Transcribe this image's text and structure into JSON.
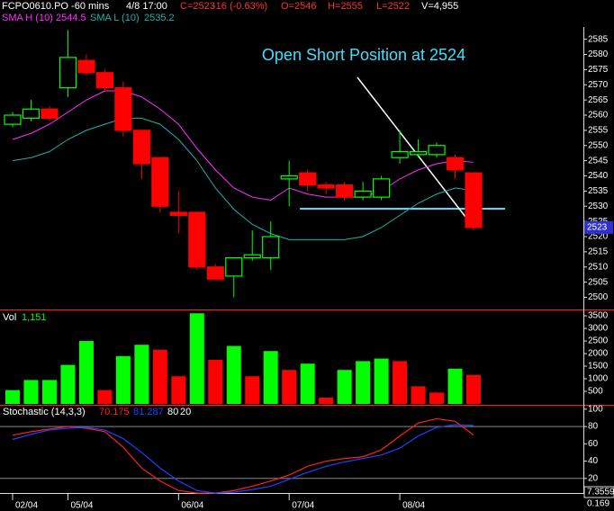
{
  "chart_data": [
    {
      "type": "candlestick",
      "title": "FCPO0610.PO -60 mins",
      "subtitle": "4/8 17:00",
      "quote": [
        "C=2523",
        "-16 (-0.63%)",
        "O=2546",
        "H=2555",
        "L=2522",
        "V=4,955"
      ],
      "open": [
        2557,
        2559,
        2562,
        2569,
        2578,
        2574,
        2569,
        2555,
        2546,
        2528,
        2528,
        2510,
        2507,
        2513,
        2513,
        2539,
        2541,
        2537,
        2537,
        2533,
        2533,
        2546,
        2547,
        2547,
        2546,
        2541
      ],
      "high": [
        2561,
        2565,
        2563,
        2588,
        2580,
        2575,
        2571,
        2555,
        2546,
        2535,
        2528,
        2511,
        2513,
        2522,
        2525,
        2545,
        2542,
        2538,
        2538,
        2538,
        2540,
        2555,
        2552,
        2551,
        2547,
        2541
      ],
      "low": [
        2556,
        2558,
        2558,
        2566,
        2573,
        2568,
        2553,
        2539,
        2528,
        2521,
        2509,
        2506,
        2500,
        2512,
        2509,
        2530,
        2535,
        2534,
        2532,
        2532,
        2532,
        2544,
        2546,
        2546,
        2539,
        2522
      ],
      "close": [
        2560,
        2562,
        2559,
        2579,
        2574,
        2569,
        2555,
        2544,
        2530,
        2527,
        2510,
        2506,
        2513,
        2514,
        2520,
        2540,
        2537,
        2536,
        2533,
        2535,
        2539,
        2548,
        2548,
        2550,
        2542,
        2523
      ],
      "up_color": "#00ff00",
      "down_color": "#ff0000",
      "series": [
        {
          "name": "SMA H (10)",
          "color": "#ff30ff",
          "values": [
            2552,
            2554,
            2557,
            2561,
            2565,
            2568,
            2568,
            2566,
            2562,
            2557,
            2549,
            2542,
            2536,
            2533,
            2532,
            2536,
            2534,
            2533,
            2533,
            2533,
            2535,
            2539,
            2542,
            2544,
            2545,
            2544.5
          ]
        },
        {
          "name": "SMA L (10)",
          "color": "#20b0b0",
          "values": [
            2545,
            2546,
            2548,
            2552,
            2555,
            2557,
            2559,
            2559,
            2557,
            2552,
            2545,
            2536,
            2529,
            2524,
            2521,
            2519,
            2519,
            2519,
            2519,
            2520,
            2523,
            2527,
            2531,
            2534,
            2536,
            2535.2
          ]
        }
      ],
      "annotation": "Open Short Position at 2524",
      "ylim": [
        2496,
        2592
      ],
      "yticks": [
        2500,
        2505,
        2510,
        2515,
        2520,
        2525,
        2530,
        2535,
        2540,
        2545,
        2550,
        2555,
        2560,
        2565,
        2570,
        2575,
        2580,
        2585
      ]
    },
    {
      "type": "bar",
      "title": "Vol",
      "values": [
        550,
        950,
        950,
        1550,
        2500,
        550,
        1900,
        2350,
        2150,
        1100,
        3600,
        1750,
        2300,
        1100,
        2100,
        1350,
        1600,
        250,
        1350,
        1700,
        1800,
        1700,
        700,
        450,
        1400,
        1151
      ],
      "value_labels": [
        null,
        null,
        null,
        null,
        null,
        null,
        null,
        null,
        null,
        null,
        null,
        null,
        null,
        null,
        null,
        null,
        null,
        null,
        null,
        null,
        null,
        null,
        null,
        null,
        null,
        "1,151"
      ],
      "colors": [
        "#00ff00",
        "#00ff00",
        "#00ff00",
        "#00ff00",
        "#00ff00",
        "#ff0000",
        "#00ff00",
        "#00ff00",
        "#ff0000",
        "#ff0000",
        "#00ff00",
        "#ff0000",
        "#00ff00",
        "#ff0000",
        "#00ff00",
        "#ff0000",
        "#00ff00",
        "#ff0000",
        "#00ff00",
        "#00ff00",
        "#00ff00",
        "#ff0000",
        "#ff0000",
        "#ff0000",
        "#00ff00",
        "#ff0000"
      ],
      "ylim": [
        0,
        3680
      ],
      "yticks": [
        500,
        1000,
        1500,
        2000,
        2500,
        3000,
        3500
      ]
    },
    {
      "type": "line",
      "title": "Stochastic (14,3,3)",
      "categories": [
        "02/04",
        null,
        null,
        "05/04",
        null,
        null,
        null,
        null,
        null,
        "06/04",
        null,
        null,
        null,
        null,
        null,
        "07/04",
        null,
        null,
        null,
        null,
        null,
        "08/04",
        null,
        null,
        null,
        null
      ],
      "series": [
        {
          "color": "#ff2020",
          "values": [
            70,
            74,
            77,
            80,
            78,
            74,
            56,
            32,
            17,
            6,
            3,
            3,
            6,
            11,
            17,
            24,
            34,
            40,
            43,
            45,
            53,
            69,
            84,
            89,
            86,
            70.175
          ]
        },
        {
          "color": "#2040ff",
          "values": [
            65,
            71,
            76,
            78,
            79,
            76,
            66,
            50,
            32,
            17,
            6,
            3,
            4,
            7,
            11,
            19,
            27,
            34,
            39,
            43,
            47,
            55,
            69,
            79,
            82,
            81.287
          ]
        }
      ],
      "levels": [
        80,
        20
      ],
      "corner_labels": [
        "7.3559",
        "0.169"
      ],
      "ylim": [
        0,
        104
      ],
      "yticks": [
        20,
        40,
        60,
        80,
        100
      ]
    }
  ]
}
